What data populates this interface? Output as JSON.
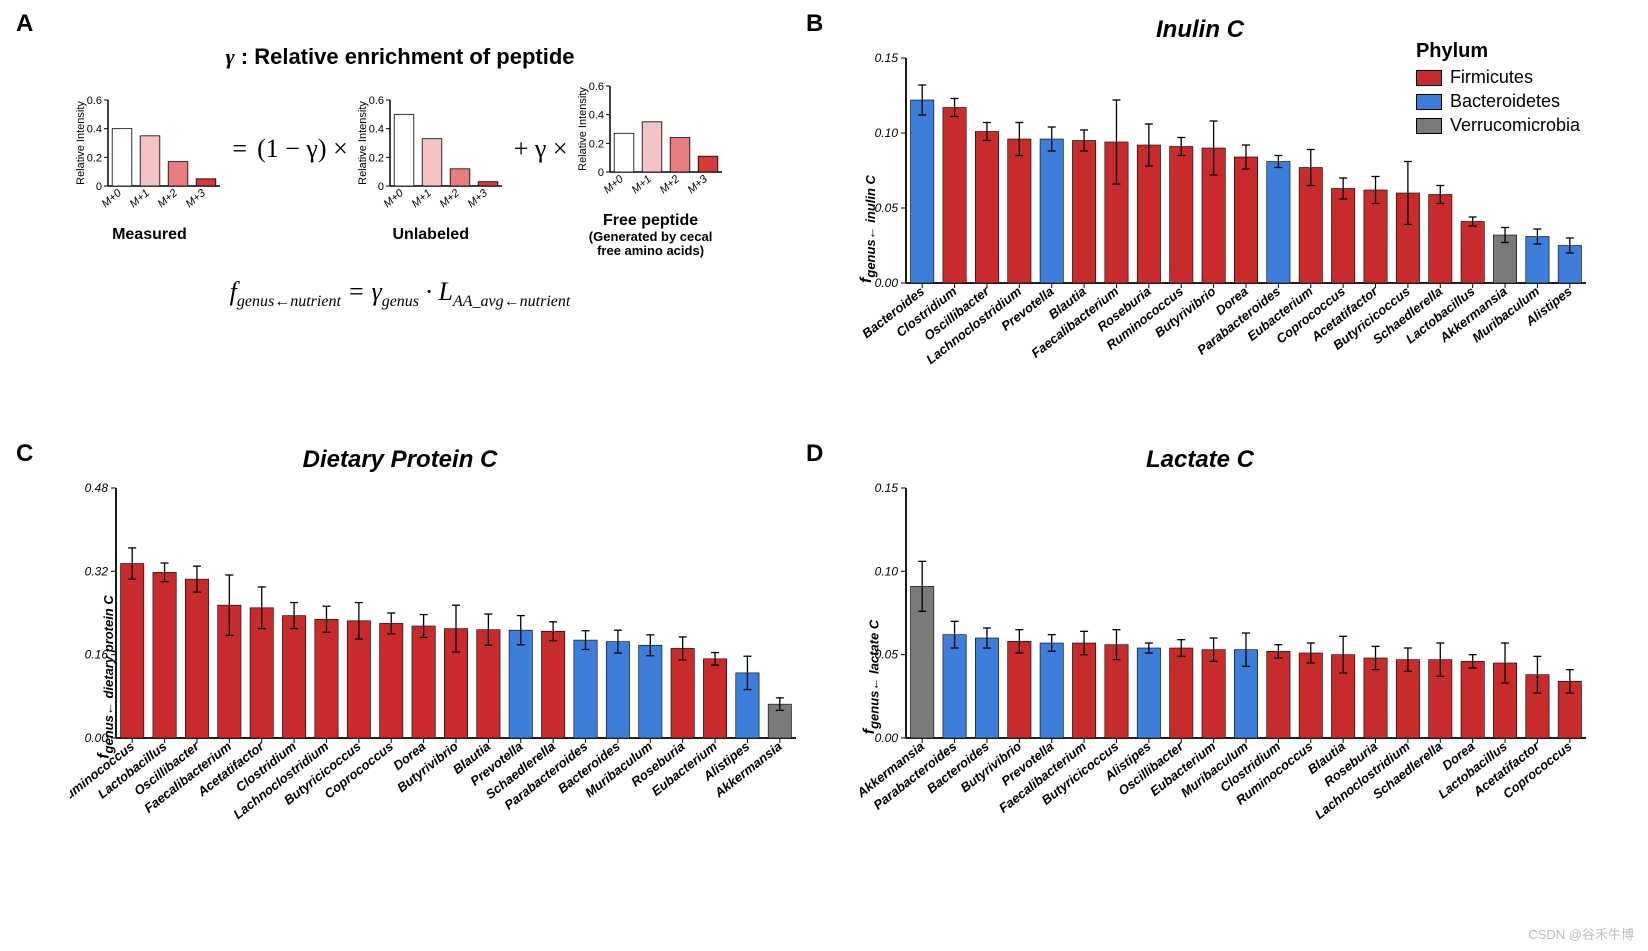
{
  "colors": {
    "firmicutes": "#c72b2b",
    "bacteroidetes": "#3d7edb",
    "verrucomicrobia": "#7a7a7a",
    "panelA_bars": [
      "#ffffff",
      "#f4c3c3",
      "#e87d7d",
      "#d43a3a"
    ],
    "axis": "#000000",
    "error_bar": "#000000",
    "background": "#ffffff"
  },
  "panelA": {
    "label": "A",
    "title_prefix": "γ",
    "title_rest": ": Relative enrichment of peptide",
    "ylabel": "Relative Intensity",
    "ylim": [
      0,
      0.6
    ],
    "yticks": [
      0,
      0.2,
      0.4,
      0.6
    ],
    "categories": [
      "M+0",
      "M+1",
      "M+2",
      "M+3"
    ],
    "charts": [
      {
        "name": "Measured",
        "sub": "",
        "values": [
          0.4,
          0.35,
          0.17,
          0.05
        ]
      },
      {
        "name": "Unlabeled",
        "sub": "",
        "values": [
          0.5,
          0.33,
          0.12,
          0.03
        ]
      },
      {
        "name": "Free peptide",
        "sub": "(Generated by cecal\nfree amino acids)",
        "values": [
          0.27,
          0.35,
          0.24,
          0.11
        ]
      }
    ],
    "ops": [
      "=",
      "(1 − γ) ×",
      "+ γ ×"
    ],
    "formula_html": "f<sub>genus←nutrient</sub> = γ<sub>genus</sub> · L<sub>AA_avg←nutrient</sub>"
  },
  "legend": {
    "title": "Phylum",
    "items": [
      {
        "label": "Firmicutes",
        "color_key": "firmicutes"
      },
      {
        "label": "Bacteroidetes",
        "color_key": "bacteroidetes"
      },
      {
        "label": "Verrucomicrobia",
        "color_key": "verrucomicrobia"
      }
    ]
  },
  "panelB": {
    "label": "B",
    "title": "Inulin C",
    "ylabel_main": "f",
    "ylabel_sub": "genus← inulin C",
    "ylim": [
      0,
      0.15
    ],
    "yticks": [
      0.0,
      0.05,
      0.1,
      0.15
    ],
    "bar_width": 0.72,
    "font_size_axis": 12,
    "bars": [
      {
        "genus": "Bacteroides",
        "v": 0.122,
        "e": 0.01,
        "phylum": "bacteroidetes"
      },
      {
        "genus": "Clostridium",
        "v": 0.117,
        "e": 0.006,
        "phylum": "firmicutes"
      },
      {
        "genus": "Oscillibacter",
        "v": 0.101,
        "e": 0.006,
        "phylum": "firmicutes"
      },
      {
        "genus": "Lachnoclostridium",
        "v": 0.096,
        "e": 0.011,
        "phylum": "firmicutes"
      },
      {
        "genus": "Prevotella",
        "v": 0.096,
        "e": 0.008,
        "phylum": "bacteroidetes"
      },
      {
        "genus": "Blautia",
        "v": 0.095,
        "e": 0.007,
        "phylum": "firmicutes"
      },
      {
        "genus": "Faecalibacterium",
        "v": 0.094,
        "e": 0.028,
        "phylum": "firmicutes"
      },
      {
        "genus": "Roseburia",
        "v": 0.092,
        "e": 0.014,
        "phylum": "firmicutes"
      },
      {
        "genus": "Ruminococcus",
        "v": 0.091,
        "e": 0.006,
        "phylum": "firmicutes"
      },
      {
        "genus": "Butyrivibrio",
        "v": 0.09,
        "e": 0.018,
        "phylum": "firmicutes"
      },
      {
        "genus": "Dorea",
        "v": 0.084,
        "e": 0.008,
        "phylum": "firmicutes"
      },
      {
        "genus": "Parabacteroides",
        "v": 0.081,
        "e": 0.004,
        "phylum": "bacteroidetes"
      },
      {
        "genus": "Eubacterium",
        "v": 0.077,
        "e": 0.012,
        "phylum": "firmicutes"
      },
      {
        "genus": "Coprococcus",
        "v": 0.063,
        "e": 0.007,
        "phylum": "firmicutes"
      },
      {
        "genus": "Acetatifactor",
        "v": 0.062,
        "e": 0.009,
        "phylum": "firmicutes"
      },
      {
        "genus": "Butyricicoccus",
        "v": 0.06,
        "e": 0.021,
        "phylum": "firmicutes"
      },
      {
        "genus": "Schaedlerella",
        "v": 0.059,
        "e": 0.006,
        "phylum": "firmicutes"
      },
      {
        "genus": "Lactobacillus",
        "v": 0.041,
        "e": 0.003,
        "phylum": "firmicutes"
      },
      {
        "genus": "Akkermansia",
        "v": 0.032,
        "e": 0.005,
        "phylum": "verrucomicrobia"
      },
      {
        "genus": "Muribaculum",
        "v": 0.031,
        "e": 0.005,
        "phylum": "bacteroidetes"
      },
      {
        "genus": "Alistipes",
        "v": 0.025,
        "e": 0.005,
        "phylum": "bacteroidetes"
      }
    ]
  },
  "panelC": {
    "label": "C",
    "title": "Dietary Protein C",
    "ylabel_main": "f",
    "ylabel_sub": "genus← dietary protein C",
    "ylim": [
      0,
      0.48
    ],
    "yticks": [
      0.0,
      0.16,
      0.32,
      0.48
    ],
    "bar_width": 0.72,
    "font_size_axis": 12,
    "bars": [
      {
        "genus": "Ruminococcus",
        "v": 0.335,
        "e": 0.03,
        "phylum": "firmicutes"
      },
      {
        "genus": "Lactobacillus",
        "v": 0.318,
        "e": 0.018,
        "phylum": "firmicutes"
      },
      {
        "genus": "Oscillibacter",
        "v": 0.305,
        "e": 0.025,
        "phylum": "firmicutes"
      },
      {
        "genus": "Faecalibacterium",
        "v": 0.255,
        "e": 0.058,
        "phylum": "firmicutes"
      },
      {
        "genus": "Acetatifactor",
        "v": 0.25,
        "e": 0.04,
        "phylum": "firmicutes"
      },
      {
        "genus": "Clostridium",
        "v": 0.235,
        "e": 0.025,
        "phylum": "firmicutes"
      },
      {
        "genus": "Lachnoclostridium",
        "v": 0.228,
        "e": 0.025,
        "phylum": "firmicutes"
      },
      {
        "genus": "Butyricicoccus",
        "v": 0.225,
        "e": 0.035,
        "phylum": "firmicutes"
      },
      {
        "genus": "Coprococcus",
        "v": 0.22,
        "e": 0.02,
        "phylum": "firmicutes"
      },
      {
        "genus": "Dorea",
        "v": 0.215,
        "e": 0.022,
        "phylum": "firmicutes"
      },
      {
        "genus": "Butyrivibrio",
        "v": 0.21,
        "e": 0.045,
        "phylum": "firmicutes"
      },
      {
        "genus": "Blautia",
        "v": 0.208,
        "e": 0.03,
        "phylum": "firmicutes"
      },
      {
        "genus": "Prevotella",
        "v": 0.207,
        "e": 0.028,
        "phylum": "bacteroidetes"
      },
      {
        "genus": "Schaedlerella",
        "v": 0.205,
        "e": 0.018,
        "phylum": "firmicutes"
      },
      {
        "genus": "Parabacteroides",
        "v": 0.188,
        "e": 0.018,
        "phylum": "bacteroidetes"
      },
      {
        "genus": "Bacteroides",
        "v": 0.185,
        "e": 0.022,
        "phylum": "bacteroidetes"
      },
      {
        "genus": "Muribaculum",
        "v": 0.178,
        "e": 0.02,
        "phylum": "bacteroidetes"
      },
      {
        "genus": "Roseburia",
        "v": 0.172,
        "e": 0.022,
        "phylum": "firmicutes"
      },
      {
        "genus": "Eubacterium",
        "v": 0.152,
        "e": 0.012,
        "phylum": "firmicutes"
      },
      {
        "genus": "Alistipes",
        "v": 0.125,
        "e": 0.032,
        "phylum": "bacteroidetes"
      },
      {
        "genus": "Akkermansia",
        "v": 0.065,
        "e": 0.012,
        "phylum": "verrucomicrobia"
      }
    ]
  },
  "panelD": {
    "label": "D",
    "title": "Lactate C",
    "ylabel_main": "f",
    "ylabel_sub": "genus← lactate C",
    "ylim": [
      0,
      0.15
    ],
    "yticks": [
      0.0,
      0.05,
      0.1,
      0.15
    ],
    "bar_width": 0.72,
    "font_size_axis": 12,
    "bars": [
      {
        "genus": "Akkermansia",
        "v": 0.091,
        "e": 0.015,
        "phylum": "verrucomicrobia"
      },
      {
        "genus": "Parabacteroides",
        "v": 0.062,
        "e": 0.008,
        "phylum": "bacteroidetes"
      },
      {
        "genus": "Bacteroides",
        "v": 0.06,
        "e": 0.006,
        "phylum": "bacteroidetes"
      },
      {
        "genus": "Butyrivibrio",
        "v": 0.058,
        "e": 0.007,
        "phylum": "firmicutes"
      },
      {
        "genus": "Prevotella",
        "v": 0.057,
        "e": 0.005,
        "phylum": "bacteroidetes"
      },
      {
        "genus": "Faecalibacterium",
        "v": 0.057,
        "e": 0.007,
        "phylum": "firmicutes"
      },
      {
        "genus": "Butyricicoccus",
        "v": 0.056,
        "e": 0.009,
        "phylum": "firmicutes"
      },
      {
        "genus": "Alistipes",
        "v": 0.054,
        "e": 0.003,
        "phylum": "bacteroidetes"
      },
      {
        "genus": "Oscillibacter",
        "v": 0.054,
        "e": 0.005,
        "phylum": "firmicutes"
      },
      {
        "genus": "Eubacterium",
        "v": 0.053,
        "e": 0.007,
        "phylum": "firmicutes"
      },
      {
        "genus": "Muribaculum",
        "v": 0.053,
        "e": 0.01,
        "phylum": "bacteroidetes"
      },
      {
        "genus": "Clostridium",
        "v": 0.052,
        "e": 0.004,
        "phylum": "firmicutes"
      },
      {
        "genus": "Ruminococcus",
        "v": 0.051,
        "e": 0.006,
        "phylum": "firmicutes"
      },
      {
        "genus": "Blautia",
        "v": 0.05,
        "e": 0.011,
        "phylum": "firmicutes"
      },
      {
        "genus": "Roseburia",
        "v": 0.048,
        "e": 0.007,
        "phylum": "firmicutes"
      },
      {
        "genus": "Lachnoclostridium",
        "v": 0.047,
        "e": 0.007,
        "phylum": "firmicutes"
      },
      {
        "genus": "Schaedlerella",
        "v": 0.047,
        "e": 0.01,
        "phylum": "firmicutes"
      },
      {
        "genus": "Dorea",
        "v": 0.046,
        "e": 0.004,
        "phylum": "firmicutes"
      },
      {
        "genus": "Lactobacillus",
        "v": 0.045,
        "e": 0.012,
        "phylum": "firmicutes"
      },
      {
        "genus": "Acetatifactor",
        "v": 0.038,
        "e": 0.011,
        "phylum": "firmicutes"
      },
      {
        "genus": "Coprococcus",
        "v": 0.034,
        "e": 0.007,
        "phylum": "firmicutes"
      }
    ]
  },
  "watermark": "CSDN @谷禾牛博"
}
